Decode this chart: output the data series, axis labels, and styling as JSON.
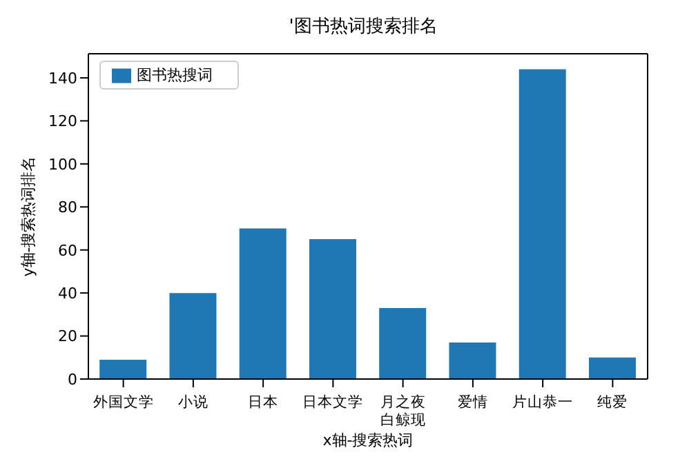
{
  "chart_data": {
    "type": "bar",
    "title": "'图书热词搜索排名",
    "xlabel": "x轴-搜索热词",
    "ylabel": "y轴-搜索热词排名",
    "categories": [
      "外国文学",
      "小说",
      "日本",
      "日本文学",
      "月之夜白鲸现",
      "爱情",
      "片山恭一",
      "纯爱"
    ],
    "series": [
      {
        "name": "图书热搜词",
        "color": "#1f77b4",
        "values": [
          9,
          40,
          70,
          65,
          33,
          17,
          144,
          10
        ]
      }
    ],
    "ylim": [
      0,
      151.2
    ],
    "yticks": [
      0,
      20,
      40,
      60,
      80,
      100,
      120,
      140
    ],
    "grid": false,
    "legend": "top left"
  }
}
